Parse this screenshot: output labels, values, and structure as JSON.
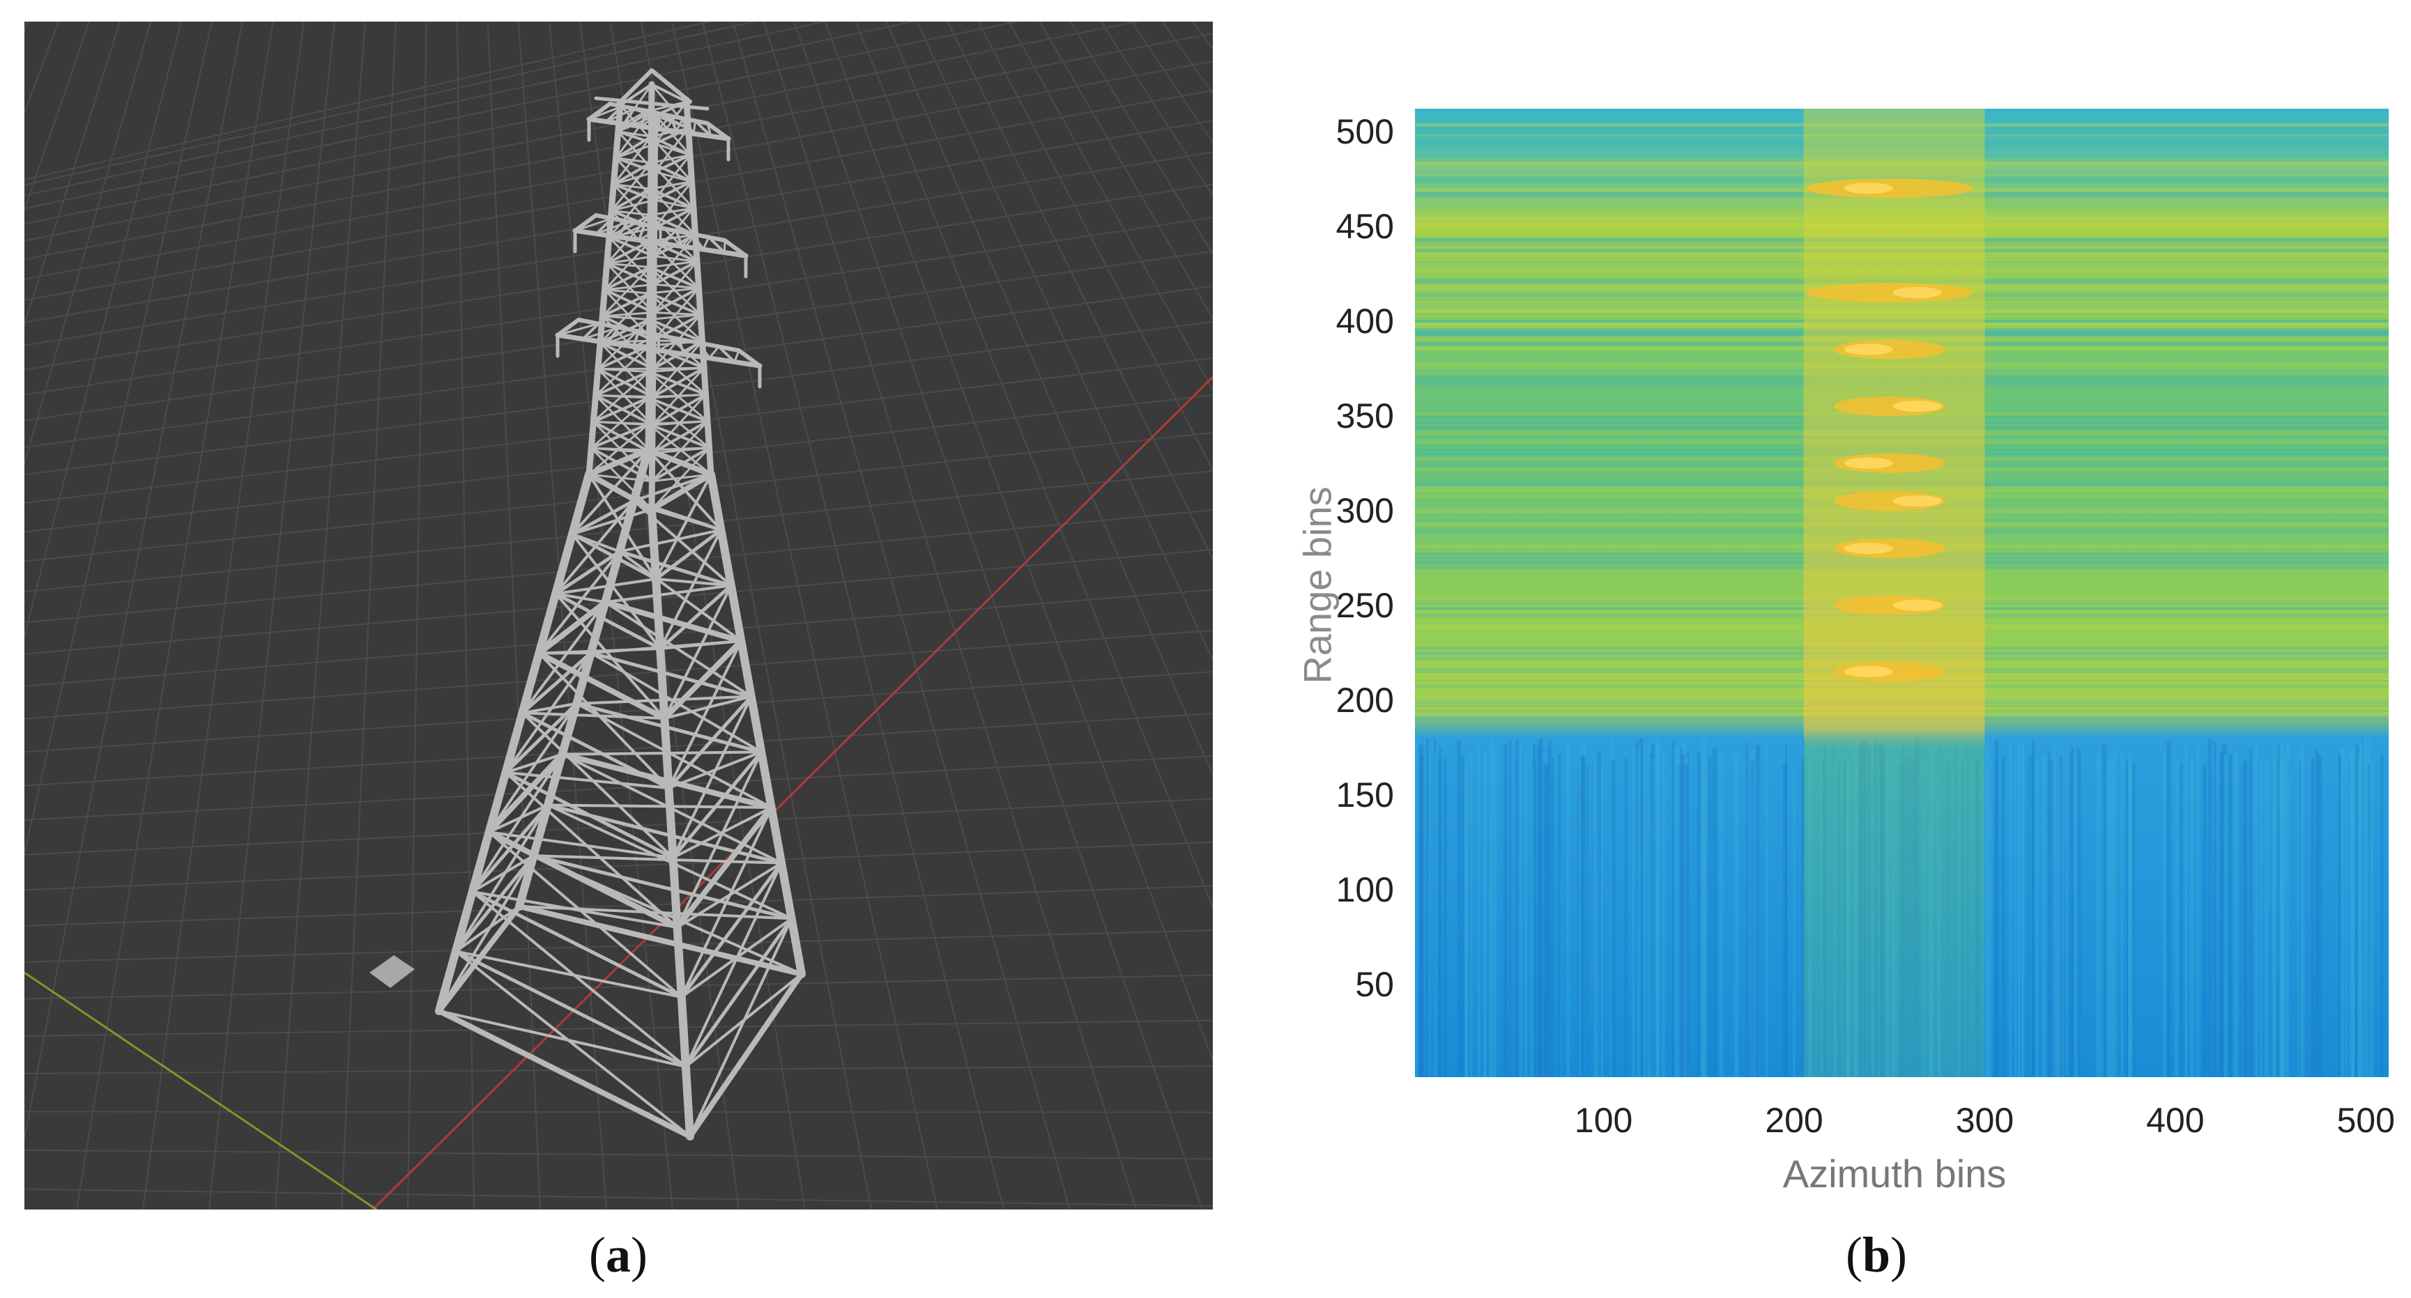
{
  "panels": {
    "a": {
      "caption_open": "(",
      "caption_letter": "a",
      "caption_close": ")"
    },
    "b": {
      "caption_open": "(",
      "caption_letter": "b",
      "caption_close": ")"
    }
  },
  "viewport": {
    "background_color": "#3a3a3a",
    "grid_color": "#4b4b4b",
    "x_axis_color": "#b03a3a",
    "y_axis_color": "#7a9a2a",
    "model_color": "#b9b9b9",
    "model": "lattice-transmission-tower"
  },
  "chart_data": {
    "type": "heatmap",
    "title": "",
    "xlabel": "Azimuth bins",
    "ylabel": "Range bins",
    "xlim": [
      1,
      512
    ],
    "ylim": [
      1,
      512
    ],
    "xticks": [
      100,
      200,
      300,
      400,
      500
    ],
    "yticks": [
      50,
      100,
      150,
      200,
      250,
      300,
      350,
      400,
      450,
      500
    ],
    "colormap": "parula",
    "grid": false,
    "legend": "none",
    "regions": [
      {
        "description": "background below",
        "range_bins": [
          1,
          180
        ],
        "level": "low",
        "color": "#1e8fd6"
      },
      {
        "description": "clutter above",
        "range_bins": [
          180,
          512
        ],
        "level": "medium",
        "color": "#8fcf4a"
      },
      {
        "description": "tower returns",
        "azimuth_bins": [
          205,
          300
        ],
        "range_bins": [
          200,
          480
        ],
        "level": "high",
        "color": "#f5c030"
      }
    ],
    "bright_rows": [
      470,
      415,
      385,
      355,
      325,
      305,
      280,
      250,
      215
    ]
  }
}
